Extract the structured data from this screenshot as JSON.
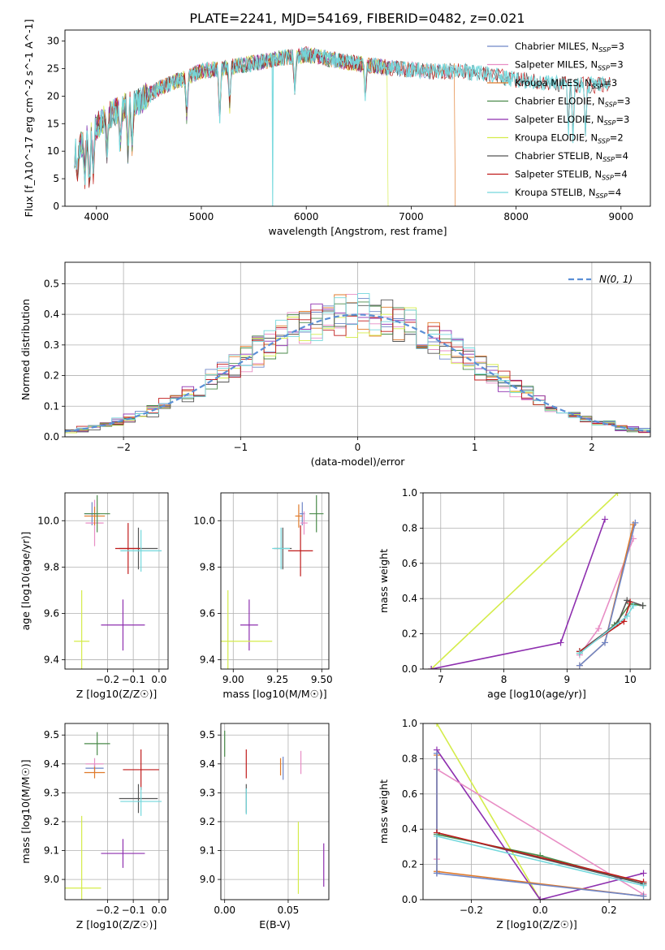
{
  "figure": {
    "title": "PLATE=2241, MJD=54169, FIBERID=0482, z=0.021"
  },
  "chart_data": [
    {
      "id": "spectrum",
      "type": "line",
      "xlabel": "wavelength [Angstrom, rest frame]",
      "ylabel": "Flux [f_λ10^-17 erg cm^-2 s^-1 A^-1]",
      "xlim": [
        3700,
        9280
      ],
      "ylim": [
        0,
        32
      ],
      "xticks": [
        4000,
        5000,
        6000,
        7000,
        8000,
        9000
      ],
      "yticks": [
        0,
        5,
        10,
        15,
        20,
        25,
        30
      ],
      "grid": false,
      "legend_position": "top-right",
      "continuum": [
        [
          3790,
          9.5
        ],
        [
          3850,
          11
        ],
        [
          3950,
          13.5
        ],
        [
          4050,
          15.5
        ],
        [
          4200,
          17.5
        ],
        [
          4400,
          19
        ],
        [
          4600,
          21.5
        ],
        [
          4800,
          23
        ],
        [
          5000,
          24.5
        ],
        [
          5200,
          25
        ],
        [
          5500,
          26
        ],
        [
          5800,
          27
        ],
        [
          6000,
          27.5
        ],
        [
          6300,
          26.5
        ],
        [
          6600,
          25.5
        ],
        [
          6900,
          25
        ],
        [
          7200,
          24.5
        ],
        [
          7500,
          24.5
        ],
        [
          7700,
          24
        ],
        [
          8000,
          23
        ],
        [
          8300,
          22.5
        ],
        [
          8600,
          22
        ],
        [
          8800,
          22
        ]
      ],
      "dips": [
        [
          3820,
          6.5
        ],
        [
          3889,
          5
        ],
        [
          3933,
          3
        ],
        [
          3969,
          6
        ],
        [
          4101,
          9
        ],
        [
          4226,
          11
        ],
        [
          4300,
          9
        ],
        [
          4340,
          11
        ],
        [
          4861,
          16
        ],
        [
          5175,
          15
        ],
        [
          5270,
          18
        ],
        [
          5890,
          21
        ],
        [
          6563,
          20
        ],
        [
          8498,
          13
        ],
        [
          8542,
          12
        ],
        [
          8662,
          13
        ]
      ],
      "series": [
        {
          "name": "Chabrier MILES",
          "nssp": "3",
          "color": "#6f86c7",
          "end": 7400,
          "drop": null
        },
        {
          "name": "Salpeter MILES",
          "nssp": "3",
          "color": "#e88ec5",
          "end": 7400,
          "drop": null
        },
        {
          "name": "Kroupa MILES",
          "nssp": "3",
          "color": "#e07a2a",
          "end": 7420,
          "drop": 7420
        },
        {
          "name": "Chabrier ELODIE",
          "nssp": "3",
          "color": "#4a8a4a",
          "end": 6800,
          "drop": null
        },
        {
          "name": "Salpeter ELODIE",
          "nssp": "3",
          "color": "#8e2faf",
          "end": 6800,
          "drop": null
        },
        {
          "name": "Kroupa ELODIE",
          "nssp": "2",
          "color": "#d4ec4a",
          "end": 6780,
          "drop": 6780
        },
        {
          "name": "Chabrier STELIB",
          "nssp": "4",
          "color": "#555555",
          "end": 8900,
          "drop": null
        },
        {
          "name": "Salpeter STELIB",
          "nssp": "4",
          "color": "#c01b1b",
          "end": 8900,
          "drop": null
        },
        {
          "name": "Kroupa STELIB",
          "nssp": "4",
          "color": "#73d8dc",
          "end": 8900,
          "drop": 5680
        }
      ]
    },
    {
      "id": "residuals",
      "type": "histogram",
      "xlabel": "(data-model)/error",
      "ylabel": "Normed distribution",
      "xlim": [
        -2.5,
        2.5
      ],
      "ylim": [
        0,
        0.57
      ],
      "xticks": [
        -2,
        -1,
        0,
        1,
        2
      ],
      "yticks": [
        0.0,
        0.1,
        0.2,
        0.3,
        0.4,
        0.5
      ],
      "grid": true,
      "legend": "N(0, 1)",
      "legend_position": "top-right",
      "bin_width": 0.1
    },
    {
      "id": "age-vs-Z",
      "type": "errorbar",
      "xlabel": "Z [log10(Z/Z☉)]",
      "ylabel": "age  [log10(age/yr)]",
      "xlim": [
        -0.365,
        0.035
      ],
      "ylim": [
        9.36,
        10.12
      ],
      "xticks": [
        -0.2,
        -0.1,
        0.0
      ],
      "yticks": [
        9.4,
        9.6,
        9.8,
        10.0
      ],
      "grid": true,
      "points": [
        {
          "x": -0.26,
          "xe": 0.03,
          "y": 10.03,
          "ye": 0.05,
          "color": "#6f86c7"
        },
        {
          "x": -0.25,
          "xe": 0.035,
          "y": 9.99,
          "ye": 0.1,
          "color": "#e88ec5"
        },
        {
          "x": -0.25,
          "xe": 0.04,
          "y": 10.02,
          "ye": 0.04,
          "color": "#e07a2a"
        },
        {
          "x": -0.24,
          "xe": 0.05,
          "y": 10.03,
          "ye": 0.08,
          "color": "#4a8a4a"
        },
        {
          "x": -0.14,
          "xe": 0.085,
          "y": 9.55,
          "ye": 0.11,
          "color": "#8e2faf"
        },
        {
          "x": -0.3,
          "xe": 0.03,
          "y": 9.48,
          "ye": 0.22,
          "color": "#d4ec4a"
        },
        {
          "x": -0.08,
          "xe": 0.075,
          "y": 9.88,
          "ye": 0.09,
          "color": "#555555"
        },
        {
          "x": -0.12,
          "xe": 0.05,
          "y": 9.88,
          "ye": 0.11,
          "color": "#c01b1b"
        },
        {
          "x": -0.07,
          "xe": 0.08,
          "y": 9.87,
          "ye": 0.09,
          "color": "#73d8dc"
        }
      ]
    },
    {
      "id": "age-vs-mass",
      "type": "errorbar",
      "xlabel": "mass [log10(M/M☉)]",
      "ylabel": "",
      "xlim": [
        8.93,
        9.54
      ],
      "ylim": [
        9.36,
        10.12
      ],
      "xticks": [
        9.0,
        9.25,
        9.5
      ],
      "yticks": [
        9.4,
        9.6,
        9.8,
        10.0
      ],
      "grid": true,
      "points": [
        {
          "x": 9.39,
          "xe": 0.015,
          "y": 10.03,
          "ye": 0.05,
          "color": "#6f86c7"
        },
        {
          "x": 9.4,
          "xe": 0.02,
          "y": 9.99,
          "ye": 0.05,
          "color": "#e88ec5"
        },
        {
          "x": 9.37,
          "xe": 0.02,
          "y": 10.02,
          "ye": 0.05,
          "color": "#e07a2a"
        },
        {
          "x": 9.47,
          "xe": 0.04,
          "y": 10.03,
          "ye": 0.08,
          "color": "#4a8a4a"
        },
        {
          "x": 9.09,
          "xe": 0.05,
          "y": 9.55,
          "ye": 0.11,
          "color": "#8e2faf"
        },
        {
          "x": 8.97,
          "xe": 0.25,
          "y": 9.48,
          "ye": 0.22,
          "color": "#d4ec4a"
        },
        {
          "x": 9.28,
          "xe": 0.05,
          "y": 9.88,
          "ye": 0.09,
          "color": "#555555"
        },
        {
          "x": 9.38,
          "xe": 0.07,
          "y": 9.87,
          "ye": 0.11,
          "color": "#c01b1b"
        },
        {
          "x": 9.27,
          "xe": 0.05,
          "y": 9.88,
          "ye": 0.09,
          "color": "#73d8dc"
        }
      ]
    },
    {
      "id": "weight-vs-age",
      "type": "line",
      "xlabel": "age  [log10(age/yr)]",
      "ylabel": "mass weight",
      "xlim": [
        6.72,
        10.32
      ],
      "ylim": [
        0.0,
        1.0
      ],
      "xticks": [
        7,
        8,
        9,
        10
      ],
      "yticks": [
        0.0,
        0.2,
        0.4,
        0.6,
        0.8,
        1.0
      ],
      "grid": true,
      "series": [
        {
          "color": "#d4ec4a",
          "points": [
            [
              6.85,
              0.0
            ],
            [
              9.8,
              1.0
            ]
          ]
        },
        {
          "color": "#8e2faf",
          "points": [
            [
              6.85,
              0.0
            ],
            [
              8.9,
              0.15
            ],
            [
              9.6,
              0.85
            ]
          ]
        },
        {
          "color": "#e88ec5",
          "points": [
            [
              9.2,
              0.08
            ],
            [
              9.5,
              0.23
            ],
            [
              10.05,
              0.74
            ]
          ]
        },
        {
          "color": "#e07a2a",
          "points": [
            [
              9.2,
              0.02
            ],
            [
              9.6,
              0.15
            ],
            [
              10.05,
              0.82
            ]
          ]
        },
        {
          "color": "#6f86c7",
          "points": [
            [
              9.2,
              0.02
            ],
            [
              9.6,
              0.15
            ],
            [
              10.08,
              0.83
            ]
          ]
        },
        {
          "color": "#4a8a4a",
          "points": [
            [
              9.2,
              0.09
            ],
            [
              9.75,
              0.25
            ],
            [
              10.0,
              0.37
            ],
            [
              10.2,
              0.36
            ]
          ]
        },
        {
          "color": "#555555",
          "points": [
            [
              9.2,
              0.1
            ],
            [
              9.8,
              0.26
            ],
            [
              9.95,
              0.39
            ],
            [
              10.2,
              0.36
            ]
          ]
        },
        {
          "color": "#c01b1b",
          "points": [
            [
              9.2,
              0.1
            ],
            [
              9.9,
              0.27
            ],
            [
              10.0,
              0.38
            ]
          ]
        },
        {
          "color": "#73d8dc",
          "points": [
            [
              9.2,
              0.09
            ],
            [
              9.95,
              0.3
            ],
            [
              10.05,
              0.36
            ]
          ]
        }
      ]
    },
    {
      "id": "mass-vs-Z",
      "type": "errorbar",
      "xlabel": "Z [log10(Z/Z☉)]",
      "ylabel": "mass [log10(M/M☉)]",
      "xlim": [
        -0.365,
        0.035
      ],
      "ylim": [
        8.93,
        9.54
      ],
      "xticks": [
        -0.2,
        -0.1,
        0.0
      ],
      "yticks": [
        9.0,
        9.1,
        9.2,
        9.3,
        9.4,
        9.5
      ],
      "grid": true,
      "points": [
        {
          "x": -0.25,
          "xe": 0.035,
          "y": 9.385,
          "ye": 0.015,
          "color": "#6f86c7"
        },
        {
          "x": -0.25,
          "xe": 0.035,
          "y": 9.4,
          "ye": 0.02,
          "color": "#e88ec5"
        },
        {
          "x": -0.25,
          "xe": 0.04,
          "y": 9.37,
          "ye": 0.02,
          "color": "#e07a2a"
        },
        {
          "x": -0.24,
          "xe": 0.05,
          "y": 9.47,
          "ye": 0.04,
          "color": "#4a8a4a"
        },
        {
          "x": -0.14,
          "xe": 0.085,
          "y": 9.09,
          "ye": 0.05,
          "color": "#8e2faf"
        },
        {
          "x": -0.3,
          "xe": 0.075,
          "y": 8.97,
          "ye": 0.25,
          "color": "#d4ec4a"
        },
        {
          "x": -0.08,
          "xe": 0.075,
          "y": 9.28,
          "ye": 0.05,
          "color": "#555555"
        },
        {
          "x": -0.07,
          "xe": 0.07,
          "y": 9.38,
          "ye": 0.07,
          "color": "#c01b1b"
        },
        {
          "x": -0.07,
          "xe": 0.08,
          "y": 9.27,
          "ye": 0.05,
          "color": "#73d8dc"
        }
      ]
    },
    {
      "id": "mass-vs-ebv",
      "type": "errorbar",
      "xlabel": "E(B-V)",
      "ylabel": "",
      "xlim": [
        -0.003,
        0.082
      ],
      "ylim": [
        8.93,
        9.54
      ],
      "xticks": [
        0.0,
        0.05
      ],
      "yticks": [
        9.0,
        9.1,
        9.2,
        9.3,
        9.4,
        9.5
      ],
      "grid": true,
      "points": [
        {
          "x": 0.046,
          "xe": 0,
          "y": 9.385,
          "ye": 0.04,
          "color": "#6f86c7"
        },
        {
          "x": 0.06,
          "xe": 0,
          "y": 9.405,
          "ye": 0.04,
          "color": "#e88ec5"
        },
        {
          "x": 0.044,
          "xe": 0,
          "y": 9.39,
          "ye": 0.03,
          "color": "#e07a2a"
        },
        {
          "x": 0.0,
          "xe": 0,
          "y": 9.47,
          "ye": 0.045,
          "color": "#4a8a4a"
        },
        {
          "x": 0.078,
          "xe": 0,
          "y": 9.05,
          "ye": 0.075,
          "color": "#8e2faf"
        },
        {
          "x": 0.058,
          "xe": 0,
          "y": 9.075,
          "ye": 0.125,
          "color": "#d4ec4a"
        },
        {
          "x": 0.017,
          "xe": 0,
          "y": 9.28,
          "ye": 0.05,
          "color": "#555555"
        },
        {
          "x": 0.017,
          "xe": 0,
          "y": 9.4,
          "ye": 0.05,
          "color": "#c01b1b"
        },
        {
          "x": 0.017,
          "xe": 0,
          "y": 9.27,
          "ye": 0.045,
          "color": "#73d8dc"
        }
      ]
    },
    {
      "id": "weight-vs-Z",
      "type": "line",
      "xlabel": "Z [log10(Z/Z☉)]",
      "ylabel": "mass weight",
      "xlim": [
        -0.34,
        0.32
      ],
      "ylim": [
        0.0,
        1.0
      ],
      "xticks": [
        -0.2,
        0.0,
        0.2
      ],
      "yticks": [
        0.0,
        0.2,
        0.4,
        0.6,
        0.8,
        1.0
      ],
      "grid": true,
      "series": [
        {
          "color": "#d4ec4a",
          "points": [
            [
              -0.3,
              1.0
            ],
            [
              0.0,
              0.0
            ]
          ]
        },
        {
          "color": "#8e2faf",
          "points": [
            [
              -0.3,
              0.85
            ],
            [
              0.0,
              0.0
            ],
            [
              0.3,
              0.15
            ]
          ]
        },
        {
          "color": "#e88ec5",
          "points": [
            [
              -0.3,
              0.23
            ],
            [
              -0.3,
              0.74
            ],
            [
              0.3,
              0.03
            ]
          ]
        },
        {
          "color": "#e07a2a",
          "points": [
            [
              -0.3,
              0.15
            ],
            [
              -0.3,
              0.82
            ],
            [
              -0.3,
              0.16
            ],
            [
              0.3,
              0.02
            ]
          ]
        },
        {
          "color": "#6f86c7",
          "points": [
            [
              -0.3,
              0.15
            ],
            [
              -0.3,
              0.83
            ],
            [
              -0.3,
              0.15
            ],
            [
              0.3,
              0.02
            ]
          ]
        },
        {
          "color": "#4a8a4a",
          "points": [
            [
              -0.3,
              0.37
            ],
            [
              0.0,
              0.25
            ],
            [
              0.3,
              0.09
            ]
          ]
        },
        {
          "color": "#555555",
          "points": [
            [
              -0.3,
              0.38
            ],
            [
              0.3,
              0.09
            ]
          ]
        },
        {
          "color": "#c01b1b",
          "points": [
            [
              -0.3,
              0.38
            ],
            [
              0.3,
              0.1
            ]
          ]
        },
        {
          "color": "#73d8dc",
          "points": [
            [
              -0.3,
              0.36
            ],
            [
              0.3,
              0.08
            ]
          ]
        }
      ]
    }
  ]
}
